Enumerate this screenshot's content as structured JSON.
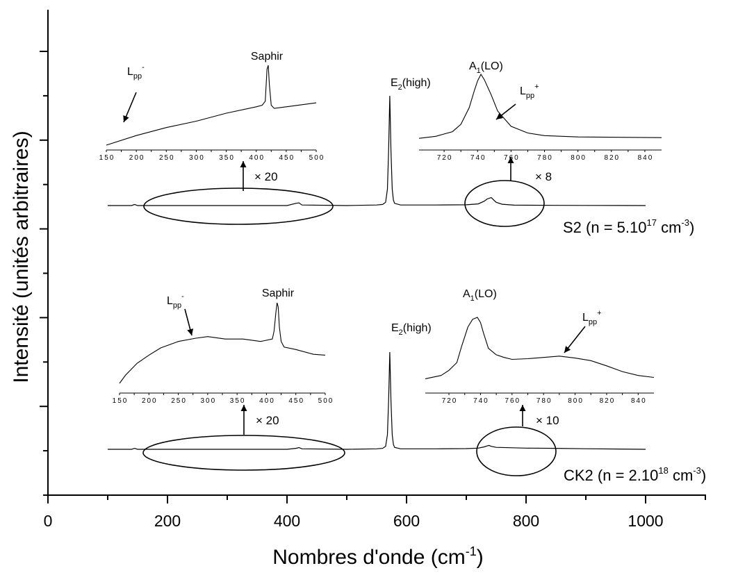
{
  "chart_data": {
    "type": "line",
    "xlabel": "Nombres d'onde (cm",
    "xlabel_sup": "-1",
    "xlabel_end": ")",
    "ylabel": "Intensité (unités arbitraires)",
    "xlim": [
      0,
      1100
    ],
    "x_ticks": [
      "0",
      "200",
      "400",
      "600",
      "800",
      "1000"
    ],
    "grid": false,
    "samples": [
      {
        "name": "S2",
        "label": "S2 (n = 5.10",
        "label_exp": "17",
        "label_unit": " cm",
        "label_unit_exp": "-3",
        "label_end": ")",
        "peaks": [
          {
            "label": "E",
            "sub": "2",
            "rest": "(high)",
            "x": 572
          },
          {
            "x": 742,
            "relative_height": 0.07
          }
        ],
        "spectrum": {
          "x": [
            100,
            140,
            145,
            150,
            200,
            300,
            400,
            415,
            420,
            425,
            500,
            550,
            560,
            565,
            568,
            570,
            572,
            574,
            576,
            578,
            580,
            590,
            650,
            700,
            720,
            730,
            735,
            740,
            742,
            745,
            750,
            760,
            780,
            850,
            900,
            1000
          ],
          "y": [
            0,
            0,
            0.01,
            0,
            0,
            0,
            0,
            0.02,
            0.025,
            0.005,
            0,
            0.005,
            0.01,
            0.03,
            0.15,
            0.5,
            1.0,
            0.5,
            0.15,
            0.05,
            0.02,
            0.005,
            0.005,
            0.007,
            0.015,
            0.04,
            0.06,
            0.07,
            0.072,
            0.055,
            0.03,
            0.012,
            0.004,
            0.002,
            0.001,
            0
          ]
        },
        "multipliers": [
          "× 20",
          "× 8"
        ],
        "inset_left": {
          "peak_label": "Saphir",
          "mode_label": "L",
          "mode_sub": "pp",
          "mode_sup": "-",
          "x_ticks": [
            "150",
            "200",
            "250",
            "300",
            "350",
            "400",
            "450",
            "500"
          ],
          "x": [
            150,
            200,
            250,
            300,
            350,
            400,
            410,
            415,
            418,
            420,
            422,
            425,
            430,
            450,
            500
          ],
          "y": [
            0,
            0.12,
            0.22,
            0.3,
            0.4,
            0.48,
            0.5,
            0.55,
            0.95,
            1.0,
            0.75,
            0.5,
            0.46,
            0.48,
            0.53
          ]
        },
        "inset_right": {
          "peak_label": "A",
          "peak_sub": "1",
          "peak_rest": "(LO)",
          "mode_label": "L",
          "mode_sub": "pp",
          "mode_sup": "+",
          "x_ticks": [
            "720",
            "740",
            "760",
            "780",
            "800",
            "820",
            "840"
          ],
          "x": [
            705,
            715,
            725,
            730,
            735,
            738,
            740,
            742,
            744,
            748,
            752,
            760,
            770,
            780,
            800,
            850
          ],
          "y": [
            0.04,
            0.07,
            0.14,
            0.25,
            0.5,
            0.75,
            0.9,
            1.0,
            0.92,
            0.7,
            0.45,
            0.22,
            0.12,
            0.08,
            0.06,
            0.05
          ]
        }
      },
      {
        "name": "CK2",
        "label": "CK2 (n = 2.10",
        "label_exp": "18",
        "label_unit": " cm",
        "label_unit_exp": "-3",
        "label_end": ")",
        "peaks": [
          {
            "label": "E",
            "sub": "2",
            "rest": "(high)",
            "x": 572
          },
          {
            "x": 738,
            "relative_height": 0.04
          }
        ],
        "spectrum": {
          "x": [
            100,
            140,
            145,
            150,
            200,
            300,
            400,
            415,
            420,
            425,
            500,
            550,
            560,
            565,
            568,
            570,
            572,
            574,
            576,
            578,
            580,
            590,
            650,
            700,
            720,
            730,
            735,
            738,
            742,
            750,
            800,
            850,
            900,
            1000
          ],
          "y": [
            0,
            0,
            0.01,
            0,
            0,
            0,
            0,
            0.01,
            0.018,
            0.005,
            0,
            0.005,
            0.01,
            0.03,
            0.15,
            0.5,
            1.0,
            0.5,
            0.15,
            0.05,
            0.02,
            0.005,
            0.005,
            0.007,
            0.012,
            0.025,
            0.035,
            0.04,
            0.03,
            0.02,
            0.012,
            0.01,
            0.006,
            0
          ]
        },
        "multipliers": [
          "× 20",
          "× 10"
        ],
        "inset_left": {
          "peak_label": "Saphir",
          "mode_label": "L",
          "mode_sub": "pp",
          "mode_sup": "-",
          "x_ticks": [
            "150",
            "200",
            "250",
            "300",
            "350",
            "400",
            "450",
            "500"
          ],
          "x": [
            150,
            160,
            180,
            200,
            220,
            250,
            280,
            300,
            330,
            360,
            390,
            410,
            413,
            416,
            418,
            420,
            422,
            425,
            430,
            450,
            480,
            500
          ],
          "y": [
            0,
            0.1,
            0.25,
            0.35,
            0.44,
            0.52,
            0.56,
            0.58,
            0.55,
            0.55,
            0.52,
            0.55,
            0.65,
            0.88,
            1.0,
            0.95,
            0.7,
            0.52,
            0.45,
            0.42,
            0.36,
            0.35
          ]
        },
        "inset_right": {
          "peak_label": "A",
          "peak_sub": "1",
          "peak_rest": "(LO)",
          "mode_label": "L",
          "mode_sub": "pp",
          "mode_sup": "+",
          "x_ticks": [
            "720",
            "740",
            "760",
            "780",
            "800",
            "820",
            "840"
          ],
          "x": [
            705,
            715,
            720,
            725,
            728,
            732,
            735,
            738,
            740,
            742,
            745,
            750,
            755,
            760,
            770,
            780,
            790,
            800,
            810,
            820,
            830,
            840,
            850
          ],
          "y": [
            0.05,
            0.1,
            0.18,
            0.3,
            0.55,
            0.85,
            0.97,
            1.0,
            0.92,
            0.75,
            0.52,
            0.42,
            0.38,
            0.35,
            0.36,
            0.38,
            0.4,
            0.37,
            0.33,
            0.25,
            0.16,
            0.1,
            0.07
          ]
        }
      }
    ]
  }
}
